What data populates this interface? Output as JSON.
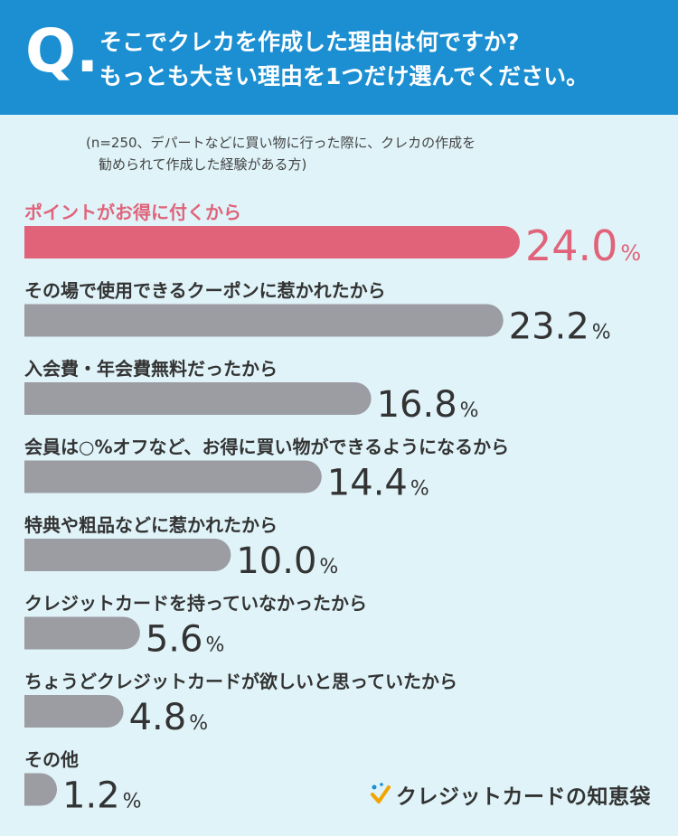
{
  "header": {
    "q_mark": "Q.",
    "title_line1": "そこでクレカを作成した理由は何ですか?",
    "title_line2": "もっとも大きい理由を1つだけ選んでください。"
  },
  "note": {
    "line1": "(n=250、デパートなどに買い物に行った際に、クレカの作成を",
    "line2": "勧められて作成した経験がある方)"
  },
  "chart_data": {
    "type": "bar",
    "orientation": "horizontal",
    "unit": "%",
    "categories": [
      "ポイントがお得に付くから",
      "その場で使用できるクーポンに惹かれたから",
      "入会費・年会費無料だったから",
      "会員は○%オフなど、お得に買い物ができるようになるから",
      "特典や粗品などに惹かれたから",
      "クレジットカードを持っていなかったから",
      "ちょうどクレジットカードが欲しいと思っていたから",
      "その他"
    ],
    "values": [
      24.0,
      23.2,
      16.8,
      14.4,
      10.0,
      5.6,
      4.8,
      1.2
    ],
    "value_labels": [
      "24.0",
      "23.2",
      "16.8",
      "14.4",
      "10.0",
      "5.6",
      "4.8",
      "1.2"
    ],
    "highlight_index": 0,
    "colors": {
      "highlight": "#e0637a",
      "default": "#9c9ca3"
    },
    "xlim": [
      0,
      24.0
    ]
  },
  "logo": {
    "text": "クレジットカードの知恵袋",
    "icon": "sparkle-check-icon"
  },
  "colors": {
    "header_bg": "#1b8fd1",
    "page_bg": "#dff3f8",
    "highlight": "#e0637a",
    "bar": "#9c9ca3"
  }
}
